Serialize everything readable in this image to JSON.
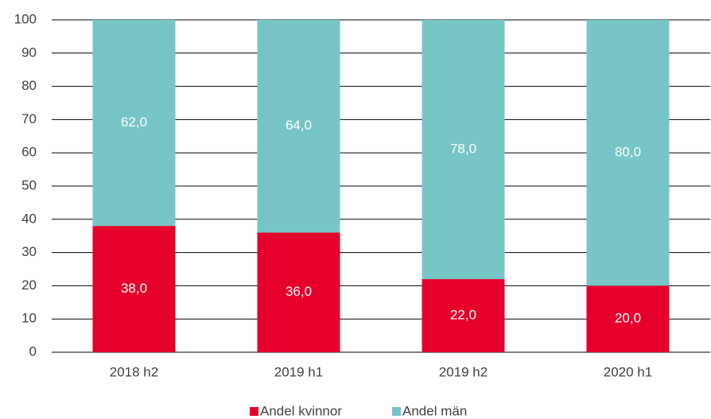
{
  "chart_data": {
    "type": "stacked_bar",
    "categories": [
      "2018 h2",
      "2019 h1",
      "2019 h2",
      "2020 h1"
    ],
    "series": [
      {
        "name": "Andel kvinnor",
        "color": "#e4002b",
        "values": [
          38,
          36,
          22,
          20
        ],
        "value_labels": [
          "38,0",
          "36,0",
          "22,0",
          "20,0"
        ]
      },
      {
        "name": "Andel män",
        "color": "#78c5c8",
        "values": [
          62,
          64,
          78,
          80
        ],
        "value_labels": [
          "62,0",
          "64,0",
          "78,0",
          "80,0"
        ]
      }
    ],
    "ylim": [
      0,
      100
    ],
    "yticks": [
      0,
      10,
      20,
      30,
      40,
      50,
      60,
      70,
      80,
      90,
      100
    ],
    "grid": true,
    "legend": "bottom"
  }
}
